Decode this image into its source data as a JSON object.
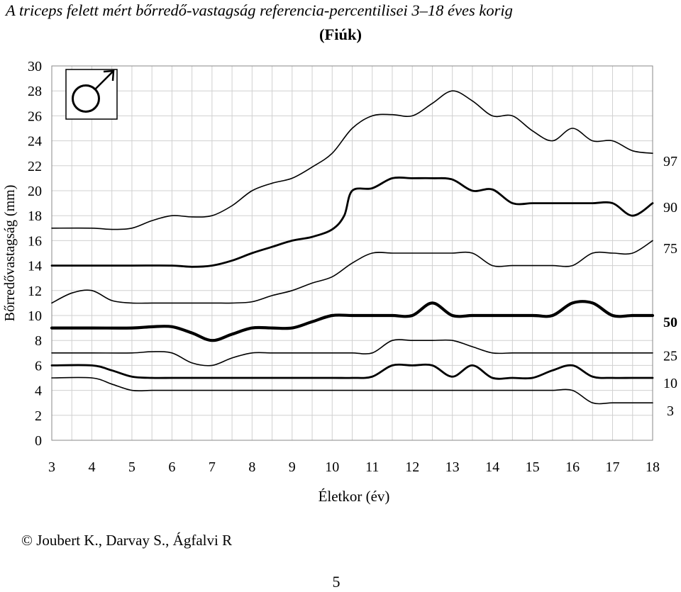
{
  "title": "A triceps felett mért bőrredő-vastagság referencia-percentilisei 3–18 éves korig",
  "subtitle": "(Fiúk)",
  "credit": "© Joubert K., Darvay S., Ágfalvi R",
  "page_number": "5",
  "chart_data": {
    "type": "line",
    "title": "A triceps felett mért bőrredő-vastagság referencia-percentilisei 3–18 éves korig",
    "subtitle": "(Fiúk)",
    "xlabel": "Életkor (év)",
    "ylabel": "Bőrredővastagság (mm)",
    "xlim": [
      3,
      18
    ],
    "ylim": [
      0,
      30
    ],
    "xticks": [
      3,
      4,
      5,
      6,
      7,
      8,
      9,
      10,
      11,
      12,
      13,
      14,
      15,
      16,
      17,
      18
    ],
    "yticks": [
      0,
      2,
      4,
      6,
      8,
      10,
      12,
      14,
      16,
      18,
      20,
      22,
      24,
      26,
      28,
      30
    ],
    "grid": true,
    "legend": "none",
    "symbol": "male-symbol",
    "series": [
      {
        "name": "97",
        "weight": "thin",
        "label_y": 22.4,
        "points": [
          [
            3,
            17
          ],
          [
            4,
            17
          ],
          [
            4.5,
            16.9
          ],
          [
            5,
            17
          ],
          [
            5.5,
            17.6
          ],
          [
            6,
            18
          ],
          [
            6.5,
            17.9
          ],
          [
            7,
            18
          ],
          [
            7.5,
            18.8
          ],
          [
            8,
            20
          ],
          [
            8.5,
            20.6
          ],
          [
            9,
            21
          ],
          [
            9.5,
            21.9
          ],
          [
            10,
            23
          ],
          [
            10.5,
            25
          ],
          [
            11,
            26
          ],
          [
            11.5,
            26.1
          ],
          [
            12,
            26
          ],
          [
            12.5,
            27
          ],
          [
            13,
            28
          ],
          [
            13.5,
            27.2
          ],
          [
            14,
            26
          ],
          [
            14.5,
            26
          ],
          [
            15,
            24.8
          ],
          [
            15.5,
            24
          ],
          [
            16,
            25
          ],
          [
            16.5,
            24
          ],
          [
            17,
            24
          ],
          [
            17.5,
            23.2
          ],
          [
            18,
            23
          ]
        ]
      },
      {
        "name": "90",
        "weight": "medium",
        "label_y": 18.7,
        "points": [
          [
            3,
            14
          ],
          [
            4,
            14
          ],
          [
            5,
            14
          ],
          [
            6,
            14
          ],
          [
            6.5,
            13.9
          ],
          [
            7,
            14
          ],
          [
            7.5,
            14.4
          ],
          [
            8,
            15
          ],
          [
            8.5,
            15.5
          ],
          [
            9,
            16
          ],
          [
            9.5,
            16.3
          ],
          [
            10,
            16.9
          ],
          [
            10.3,
            18
          ],
          [
            10.5,
            20
          ],
          [
            11,
            20.2
          ],
          [
            11.5,
            21
          ],
          [
            12,
            21
          ],
          [
            12.5,
            21
          ],
          [
            13,
            20.9
          ],
          [
            13.5,
            20
          ],
          [
            14,
            20.1
          ],
          [
            14.5,
            19
          ],
          [
            15,
            19
          ],
          [
            15.5,
            19
          ],
          [
            16,
            19
          ],
          [
            16.5,
            19
          ],
          [
            17,
            19
          ],
          [
            17.5,
            18
          ],
          [
            18,
            19
          ]
        ]
      },
      {
        "name": "75",
        "weight": "thin",
        "label_y": 15.4,
        "points": [
          [
            3,
            11
          ],
          [
            3.5,
            11.8
          ],
          [
            4,
            12
          ],
          [
            4.5,
            11.2
          ],
          [
            5,
            11
          ],
          [
            5.5,
            11
          ],
          [
            6,
            11
          ],
          [
            7,
            11
          ],
          [
            7.5,
            11
          ],
          [
            8,
            11.1
          ],
          [
            8.5,
            11.6
          ],
          [
            9,
            12
          ],
          [
            9.5,
            12.6
          ],
          [
            10,
            13.1
          ],
          [
            10.5,
            14.2
          ],
          [
            11,
            15
          ],
          [
            11.5,
            15
          ],
          [
            12,
            15
          ],
          [
            12.5,
            15
          ],
          [
            13,
            15
          ],
          [
            13.5,
            15
          ],
          [
            14,
            14
          ],
          [
            14.5,
            14
          ],
          [
            15,
            14
          ],
          [
            15.5,
            14
          ],
          [
            16,
            14
          ],
          [
            16.5,
            15
          ],
          [
            17,
            15
          ],
          [
            17.5,
            15
          ],
          [
            18,
            16
          ]
        ]
      },
      {
        "name": "50",
        "weight": "thick",
        "label_y": 9.5,
        "points": [
          [
            3,
            9
          ],
          [
            4,
            9
          ],
          [
            5,
            9
          ],
          [
            5.5,
            9.1
          ],
          [
            6,
            9.1
          ],
          [
            6.5,
            8.6
          ],
          [
            7,
            8
          ],
          [
            7.5,
            8.5
          ],
          [
            8,
            9
          ],
          [
            8.5,
            9
          ],
          [
            9,
            9
          ],
          [
            9.5,
            9.5
          ],
          [
            10,
            10
          ],
          [
            10.5,
            10
          ],
          [
            11,
            10
          ],
          [
            11.5,
            10
          ],
          [
            12,
            10
          ],
          [
            12.5,
            11
          ],
          [
            13,
            10
          ],
          [
            13.5,
            10
          ],
          [
            14,
            10
          ],
          [
            15,
            10
          ],
          [
            15.5,
            10
          ],
          [
            16,
            11
          ],
          [
            16.5,
            11
          ],
          [
            17,
            10
          ],
          [
            17.5,
            10
          ],
          [
            18,
            10
          ]
        ]
      },
      {
        "name": "25",
        "weight": "thin",
        "label_y": 6.8,
        "points": [
          [
            3,
            7
          ],
          [
            4,
            7
          ],
          [
            5,
            7
          ],
          [
            5.5,
            7.1
          ],
          [
            6,
            7
          ],
          [
            6.5,
            6.2
          ],
          [
            7,
            6
          ],
          [
            7.5,
            6.6
          ],
          [
            8,
            7
          ],
          [
            8.5,
            7
          ],
          [
            9,
            7
          ],
          [
            9.5,
            7
          ],
          [
            10,
            7
          ],
          [
            10.5,
            7
          ],
          [
            11,
            7
          ],
          [
            11.5,
            8
          ],
          [
            12,
            8
          ],
          [
            12.5,
            8
          ],
          [
            13,
            8
          ],
          [
            13.5,
            7.5
          ],
          [
            14,
            7
          ],
          [
            14.5,
            7
          ],
          [
            15,
            7
          ],
          [
            16,
            7
          ],
          [
            17,
            7
          ],
          [
            18,
            7
          ]
        ]
      },
      {
        "name": "10",
        "weight": "medium",
        "label_y": 4.6,
        "points": [
          [
            3,
            6
          ],
          [
            4,
            6
          ],
          [
            4.5,
            5.6
          ],
          [
            5,
            5.1
          ],
          [
            5.5,
            5
          ],
          [
            6,
            5
          ],
          [
            6.5,
            5
          ],
          [
            7,
            5
          ],
          [
            7.5,
            5
          ],
          [
            8,
            5
          ],
          [
            9,
            5
          ],
          [
            10,
            5
          ],
          [
            10.5,
            5
          ],
          [
            11,
            5.1
          ],
          [
            11.5,
            6
          ],
          [
            12,
            6
          ],
          [
            12.5,
            6
          ],
          [
            13,
            5.1
          ],
          [
            13.5,
            6
          ],
          [
            14,
            5
          ],
          [
            14.5,
            5
          ],
          [
            15,
            5
          ],
          [
            15.5,
            5.6
          ],
          [
            16,
            6
          ],
          [
            16.5,
            5.1
          ],
          [
            17,
            5
          ],
          [
            17.5,
            5
          ],
          [
            18,
            5
          ]
        ]
      },
      {
        "name": "3",
        "weight": "thin",
        "label_y": 2.4,
        "points": [
          [
            3,
            5
          ],
          [
            4,
            5
          ],
          [
            4.5,
            4.5
          ],
          [
            5,
            4
          ],
          [
            5.5,
            4
          ],
          [
            6,
            4
          ],
          [
            7,
            4
          ],
          [
            8,
            4
          ],
          [
            9,
            4
          ],
          [
            10,
            4
          ],
          [
            11,
            4
          ],
          [
            12,
            4
          ],
          [
            13,
            4
          ],
          [
            14,
            4
          ],
          [
            15,
            4
          ],
          [
            15.5,
            4
          ],
          [
            16,
            4
          ],
          [
            16.5,
            3
          ],
          [
            17,
            3
          ],
          [
            17.5,
            3
          ],
          [
            18,
            3
          ]
        ]
      }
    ]
  }
}
